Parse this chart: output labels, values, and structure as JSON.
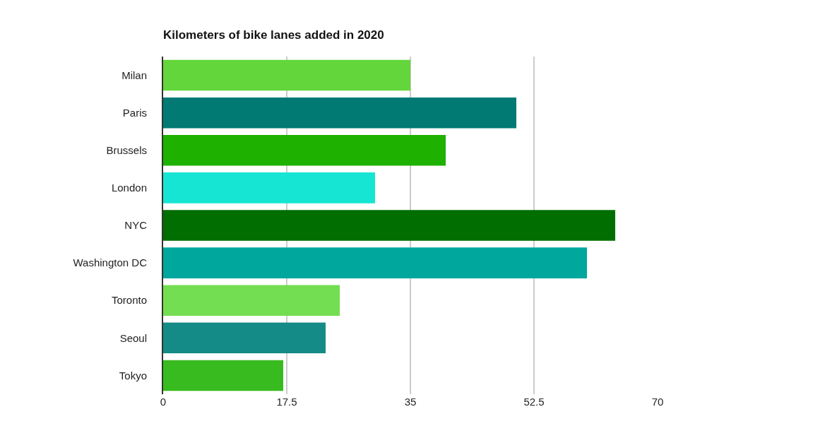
{
  "chart_data": {
    "type": "bar",
    "orientation": "horizontal",
    "title": "Kilometers of bike lanes added in 2020",
    "categories": [
      "Milan",
      "Paris",
      "Brussels",
      "London",
      "NYC",
      "Washington DC",
      "Toronto",
      "Seoul",
      "Tokyo"
    ],
    "values": [
      35,
      50,
      40,
      30,
      64,
      60,
      25,
      23,
      17
    ],
    "colors": [
      "#62d63a",
      "#007a73",
      "#1eb100",
      "#17e5d3",
      "#006e00",
      "#00a79d",
      "#74de52",
      "#148b86",
      "#38bb1e"
    ],
    "xlim": [
      0,
      70
    ],
    "xticks": [
      0,
      17.5,
      35,
      52.5,
      70
    ],
    "grid": "x"
  }
}
